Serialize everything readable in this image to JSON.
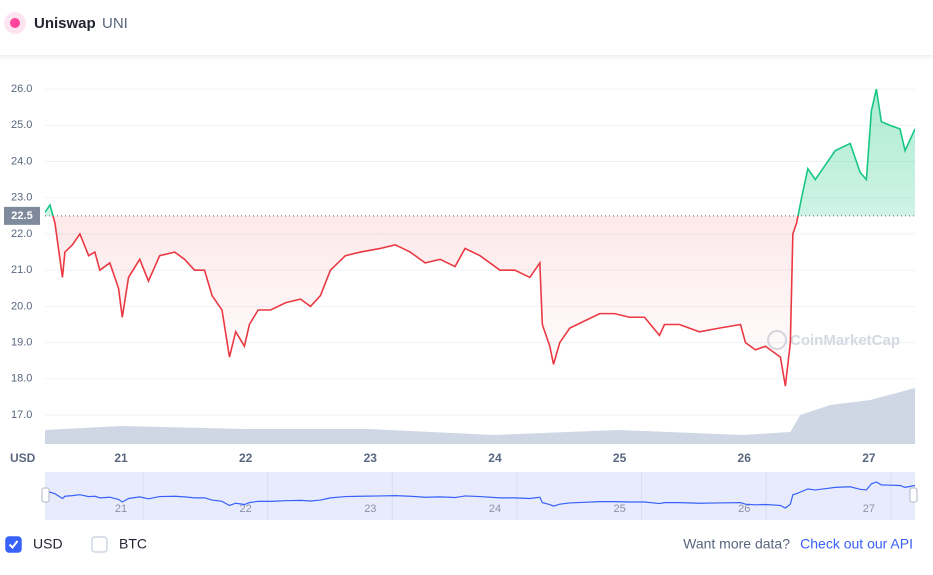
{
  "header": {
    "name": "Uniswap",
    "symbol": "UNI"
  },
  "chart_data": {
    "type": "line",
    "axis_unit": "USD",
    "watermark": "CoinMarketCap",
    "up_color": "#16c784",
    "down_color": "#ea3943",
    "baseline": 22.5,
    "xlim": [
      20.39,
      27.37
    ],
    "xticks": [
      21,
      22,
      23,
      24,
      25,
      26,
      27
    ],
    "ylim": [
      16.2,
      26.5
    ],
    "yticks": [
      {
        "value": 17,
        "label": "17.0"
      },
      {
        "value": 18,
        "label": "18.0"
      },
      {
        "value": 19,
        "label": "19.0"
      },
      {
        "value": 20,
        "label": "20.0"
      },
      {
        "value": 21,
        "label": "21.0"
      },
      {
        "value": 22,
        "label": "22.0"
      },
      {
        "value": 23,
        "label": "23.0"
      },
      {
        "value": 24,
        "label": "24.0"
      },
      {
        "value": 25,
        "label": "25.0"
      },
      {
        "value": 26,
        "label": "26.0"
      }
    ],
    "grid": true,
    "x": [
      20.39,
      20.43,
      20.47,
      20.53,
      20.55,
      20.61,
      20.67,
      20.74,
      20.79,
      20.83,
      20.91,
      20.98,
      21.01,
      21.06,
      21.15,
      21.22,
      21.31,
      21.43,
      21.51,
      21.59,
      21.67,
      21.73,
      21.81,
      21.87,
      21.92,
      21.99,
      22.03,
      22.1,
      22.2,
      22.32,
      22.44,
      22.52,
      22.6,
      22.68,
      22.8,
      22.92,
      23.08,
      23.2,
      23.32,
      23.44,
      23.56,
      23.68,
      23.76,
      23.88,
      24.04,
      24.16,
      24.28,
      24.36,
      24.38,
      24.44,
      24.47,
      24.52,
      24.6,
      24.72,
      24.84,
      24.96,
      25.08,
      25.2,
      25.32,
      25.36,
      25.48,
      25.64,
      25.8,
      25.97,
      26.01,
      26.09,
      26.17,
      26.29,
      26.33,
      26.37,
      26.39,
      26.42,
      26.46,
      26.51,
      26.57,
      26.65,
      26.73,
      26.85,
      26.93,
      26.98,
      27.02,
      27.06,
      27.1,
      27.17,
      27.25,
      27.29,
      27.37
    ],
    "values": [
      22.6,
      22.8,
      22.3,
      20.8,
      21.5,
      21.7,
      22.0,
      21.4,
      21.5,
      21.0,
      21.2,
      20.5,
      19.7,
      20.8,
      21.3,
      20.7,
      21.4,
      21.5,
      21.3,
      21.0,
      21.0,
      20.3,
      19.9,
      18.6,
      19.3,
      18.9,
      19.5,
      19.9,
      19.9,
      20.1,
      20.2,
      20.0,
      20.3,
      21.0,
      21.4,
      21.5,
      21.6,
      21.7,
      21.5,
      21.2,
      21.3,
      21.1,
      21.6,
      21.4,
      21.0,
      21.0,
      20.8,
      21.2,
      19.5,
      18.9,
      18.4,
      19.0,
      19.4,
      19.6,
      19.8,
      19.8,
      19.7,
      19.7,
      19.2,
      19.5,
      19.5,
      19.3,
      19.4,
      19.5,
      19.0,
      18.8,
      18.9,
      18.6,
      17.8,
      19.0,
      22.0,
      22.3,
      23.0,
      23.8,
      23.5,
      23.9,
      24.3,
      24.5,
      23.7,
      23.5,
      25.4,
      26.0,
      25.1,
      25.0,
      24.9,
      24.3,
      24.9
    ],
    "volume": {
      "x": [
        20.39,
        21.0,
        21.99,
        22.99,
        23.99,
        24.99,
        25.99,
        26.37,
        26.45,
        26.69,
        27.01,
        27.37
      ],
      "values": [
        14,
        18,
        15,
        15,
        9,
        14,
        9,
        12,
        29,
        39,
        44,
        56
      ]
    },
    "navigator_color": "#3861fb"
  },
  "currencies": [
    {
      "name": "USD",
      "checked": true
    },
    {
      "name": "BTC",
      "checked": false
    }
  ],
  "footer": {
    "text": "Want more data?",
    "link": "Check out our API"
  }
}
